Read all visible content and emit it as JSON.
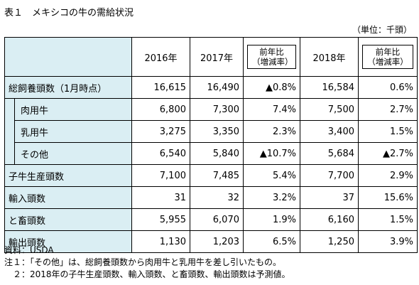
{
  "title": "表１　メキシコの牛の需給状況",
  "unit": "（単位：千頭）",
  "table": {
    "headers": {
      "y2016": "2016年",
      "y2017": "2017年",
      "chg1_line1": "前年比",
      "chg1_line2": "（増減率）",
      "y2018": "2018年",
      "chg2_line1": "前年比",
      "chg2_line2": "（増減率）"
    },
    "rows": [
      {
        "label": "総飼養頭数（1月時点）",
        "v2016": "16,615",
        "v2017": "16,490",
        "c1": "▲0.8%",
        "v2018": "16,584",
        "c2": "0.6%"
      },
      {
        "label": "肉用牛",
        "v2016": "6,800",
        "v2017": "7,300",
        "c1": "7.4%",
        "v2018": "7,500",
        "c2": "2.7%"
      },
      {
        "label": "乳用牛",
        "v2016": "3,275",
        "v2017": "3,350",
        "c1": "2.3%",
        "v2018": "3,400",
        "c2": "1.5%"
      },
      {
        "label": "その他",
        "v2016": "6,540",
        "v2017": "5,840",
        "c1": "▲10.7%",
        "v2018": "5,684",
        "c2": "▲2.7%"
      },
      {
        "label": "子牛生産頭数",
        "v2016": "7,100",
        "v2017": "7,485",
        "c1": "5.4%",
        "v2018": "7,700",
        "c2": "2.9%"
      },
      {
        "label": "輸入頭数",
        "v2016": "31",
        "v2017": "32",
        "c1": "3.2%",
        "v2018": "37",
        "c2": "15.6%"
      },
      {
        "label": "と畜頭数",
        "v2016": "5,955",
        "v2017": "6,070",
        "c1": "1.9%",
        "v2018": "6,160",
        "c2": "1.5%"
      },
      {
        "label": "輸出頭数",
        "v2016": "1,130",
        "v2017": "1,203",
        "c1": "6.5%",
        "v2018": "1,250",
        "c2": "3.9%"
      }
    ]
  },
  "notes": {
    "source": "資料：USDA",
    "note1": "注１：「その他」は、総飼養頭数から肉用牛と乳用牛を差し引いたもの。",
    "note2": "　２：2018年の子牛生産頭数、輸入頭数、と畜頭数、輸出頭数は予測値。"
  }
}
